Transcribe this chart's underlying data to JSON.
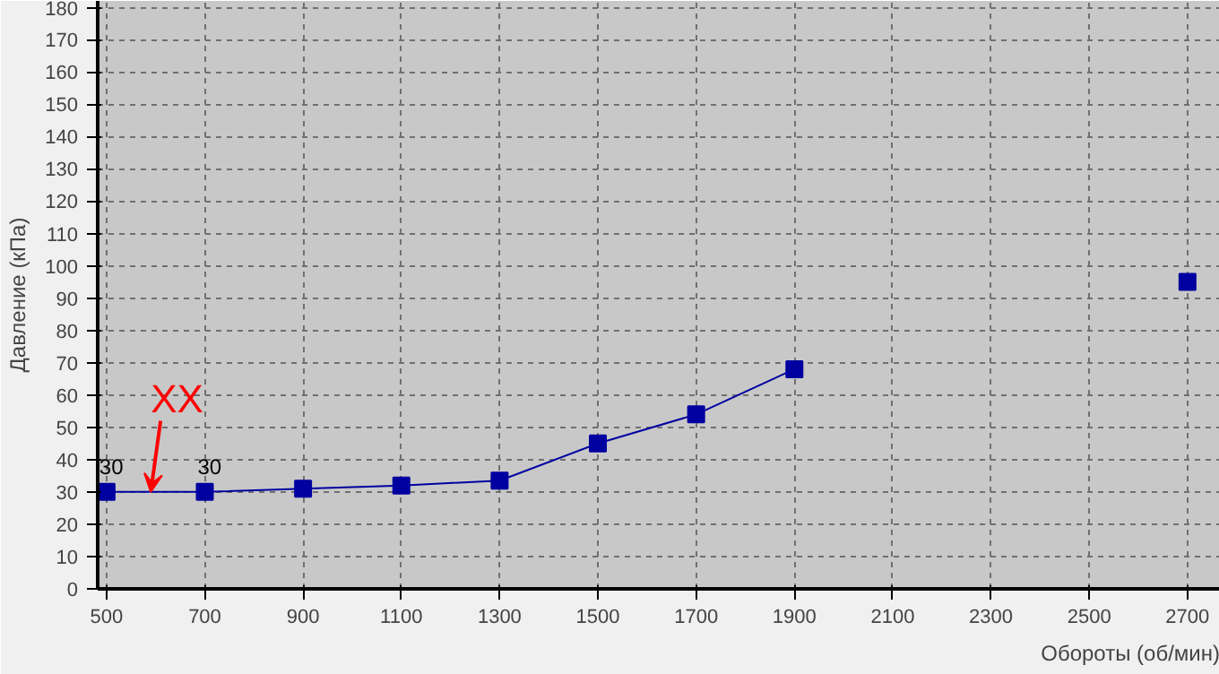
{
  "chart_data": {
    "type": "line",
    "xlabel": "Обороты (об/мин)",
    "ylabel": "Давление (кПа)",
    "x": [
      500,
      700,
      900,
      1100,
      1300,
      1500,
      1700,
      1900,
      2100,
      2300,
      2500,
      2700
    ],
    "series": [
      {
        "color": "#0000a0",
        "values": [
          30,
          30,
          31,
          32,
          33.5,
          45,
          54,
          68,
          null,
          null,
          null,
          95
        ],
        "value_labels": [
          "30",
          "30",
          null,
          null,
          null,
          null,
          null,
          null,
          null,
          null,
          null,
          null
        ]
      }
    ],
    "xlim": [
      482,
      2766
    ],
    "ylim": [
      0,
      182
    ],
    "xticks": [
      500,
      700,
      900,
      1100,
      1300,
      1500,
      1700,
      1900,
      2100,
      2300,
      2500,
      2700
    ],
    "yticks": [
      0,
      10,
      20,
      30,
      40,
      50,
      60,
      70,
      80,
      90,
      100,
      110,
      120,
      130,
      140,
      150,
      160,
      170,
      180
    ],
    "grid": true,
    "marker": "square",
    "line_style": "solid",
    "annotations": [
      {
        "text": "XX",
        "x": 590,
        "y": 30
      }
    ]
  }
}
